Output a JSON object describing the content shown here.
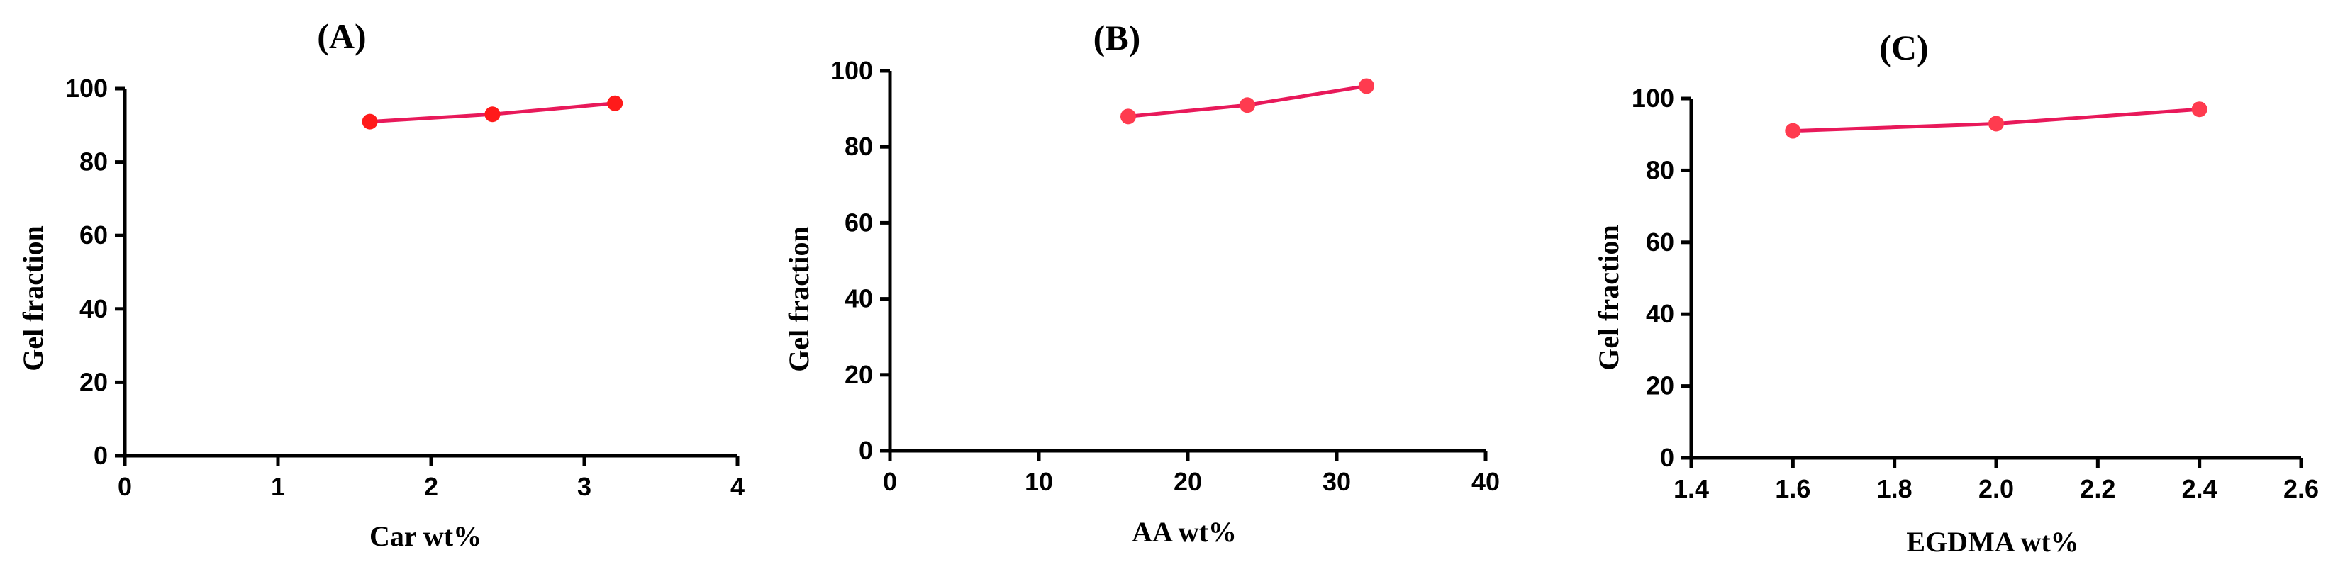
{
  "chart_data": [
    {
      "type": "line",
      "panel_label": "(A)",
      "xlabel": "Car wt%",
      "ylabel": "Gel fraction",
      "xlim": [
        0,
        4
      ],
      "ylim": [
        0,
        100
      ],
      "x_ticks": [
        "0",
        "1",
        "2",
        "3",
        "4"
      ],
      "y_ticks": [
        "0",
        "20",
        "40",
        "60",
        "80",
        "100"
      ],
      "series": [
        {
          "x": [
            1.6,
            2.4,
            3.2
          ],
          "values": [
            91,
            93,
            96
          ],
          "line_color": "#e8195a",
          "marker_color": "#ff1a1a"
        }
      ]
    },
    {
      "type": "line",
      "panel_label": "(B)",
      "xlabel": "AA wt%",
      "ylabel": "Gel fraction",
      "xlim": [
        0,
        40
      ],
      "ylim": [
        0,
        100
      ],
      "x_ticks": [
        "0",
        "10",
        "20",
        "30",
        "40"
      ],
      "y_ticks": [
        "0",
        "20",
        "40",
        "60",
        "80",
        "100"
      ],
      "series": [
        {
          "x": [
            16,
            24,
            32
          ],
          "values": [
            88,
            91,
            96
          ],
          "line_color": "#e8195a",
          "marker_color": "#ff3b4f"
        }
      ]
    },
    {
      "type": "line",
      "panel_label": "(C)",
      "xlabel": "EGDMA wt%",
      "ylabel": "Gel fraction",
      "xlim": [
        1.4,
        2.6
      ],
      "ylim": [
        0,
        100
      ],
      "x_ticks": [
        "1.4",
        "1.6",
        "1.8",
        "2.0",
        "2.2",
        "2.4",
        "2.6"
      ],
      "y_ticks": [
        "0",
        "20",
        "40",
        "60",
        "80",
        "100"
      ],
      "series": [
        {
          "x": [
            1.6,
            2.0,
            2.4
          ],
          "values": [
            91,
            93,
            97
          ],
          "line_color": "#e8195a",
          "marker_color": "#ff3b4f"
        }
      ]
    }
  ]
}
